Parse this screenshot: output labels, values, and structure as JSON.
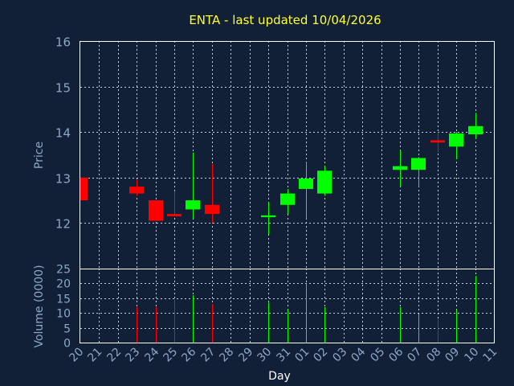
{
  "chart_data": {
    "type": "candlestick",
    "title": "ENTA - last updated 10/04/2026",
    "ylabel": "Price",
    "volume_ylabel": "Volume (0000)",
    "xlabel": "Day",
    "price_ylim": [
      11,
      16
    ],
    "price_ticks": [
      "12",
      "13",
      "14",
      "15",
      "16"
    ],
    "volume_ylim": [
      0,
      25
    ],
    "volume_ticks": [
      "0",
      "5",
      "10",
      "15",
      "20",
      "25"
    ],
    "x_ticks": [
      "20",
      "21",
      "22",
      "23",
      "24",
      "25",
      "26",
      "27",
      "28",
      "29",
      "30",
      "31",
      "01",
      "02",
      "03",
      "04",
      "05",
      "06",
      "07",
      "08",
      "09",
      "10",
      "11"
    ],
    "grid": true,
    "colors": {
      "up": "#00ff00",
      "down": "#ff0000"
    },
    "candles": [
      {
        "day": "20",
        "open": 13.0,
        "high": 13.0,
        "low": 12.5,
        "close": 12.5,
        "volume": 0
      },
      {
        "day": "23",
        "open": 12.8,
        "high": 12.95,
        "low": 12.6,
        "close": 12.65,
        "volume": 12
      },
      {
        "day": "24",
        "open": 12.5,
        "high": 12.5,
        "low": 12.05,
        "close": 12.05,
        "volume": 12
      },
      {
        "day": "25",
        "open": 12.2,
        "high": 12.7,
        "low": 12.15,
        "close": 12.15,
        "volume": 14.5
      },
      {
        "day": "26",
        "open": 12.3,
        "high": 13.55,
        "low": 12.1,
        "close": 12.5,
        "volume": 16
      },
      {
        "day": "27",
        "open": 12.4,
        "high": 13.3,
        "low": 12.0,
        "close": 12.2,
        "volume": 13
      },
      {
        "day": "30",
        "open": 12.13,
        "high": 12.45,
        "low": 11.75,
        "close": 12.17,
        "volume": 13.5
      },
      {
        "day": "31",
        "open": 12.4,
        "high": 12.75,
        "low": 12.2,
        "close": 12.65,
        "volume": 11
      },
      {
        "day": "01",
        "open": 12.75,
        "high": 13.35,
        "low": 12.1,
        "close": 12.98,
        "volume": 20
      },
      {
        "day": "02",
        "open": 12.65,
        "high": 13.25,
        "low": 12.6,
        "close": 13.15,
        "volume": 12
      },
      {
        "day": "06",
        "open": 13.17,
        "high": 13.6,
        "low": 12.8,
        "close": 13.25,
        "volume": 12
      },
      {
        "day": "07",
        "open": 13.17,
        "high": 13.45,
        "low": 12.8,
        "close": 13.43,
        "volume": 9.5
      },
      {
        "day": "08",
        "open": 13.82,
        "high": 14.0,
        "low": 13.55,
        "close": 13.77,
        "volume": 8
      },
      {
        "day": "09",
        "open": 13.68,
        "high": 14.0,
        "low": 13.4,
        "close": 13.97,
        "volume": 11
      },
      {
        "day": "10",
        "open": 13.95,
        "high": 14.42,
        "low": 13.85,
        "close": 14.13,
        "volume": 22.5
      }
    ]
  }
}
